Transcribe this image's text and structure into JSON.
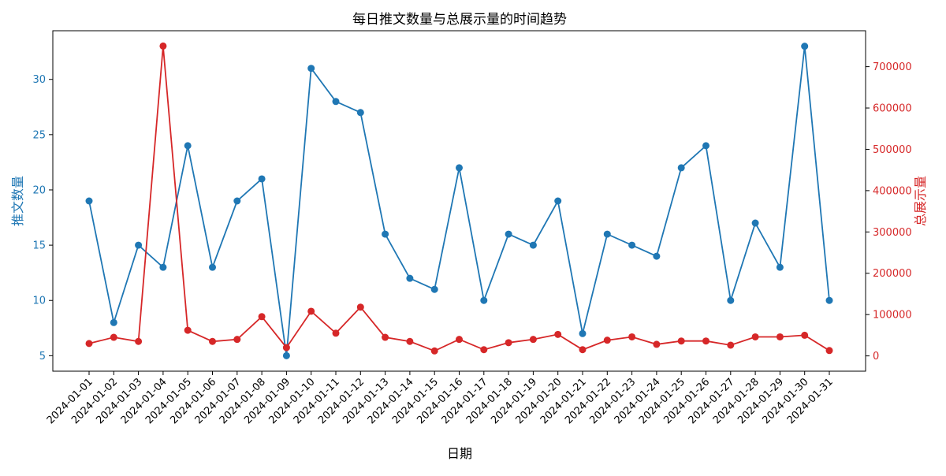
{
  "chart_data": {
    "type": "line",
    "title": "每日推文数量与总展示量的时间趋势",
    "xlabel": "日期",
    "ylabel": "推文数量",
    "ylabel_right": "总展示量",
    "categories": [
      "2024-01-01",
      "2024-01-02",
      "2024-01-03",
      "2024-01-04",
      "2024-01-05",
      "2024-01-06",
      "2024-01-07",
      "2024-01-08",
      "2024-01-09",
      "2024-01-10",
      "2024-01-11",
      "2024-01-12",
      "2024-01-13",
      "2024-01-14",
      "2024-01-15",
      "2024-01-16",
      "2024-01-17",
      "2024-01-18",
      "2024-01-19",
      "2024-01-20",
      "2024-01-21",
      "2024-01-22",
      "2024-01-23",
      "2024-01-24",
      "2024-01-25",
      "2024-01-26",
      "2024-01-27",
      "2024-01-28",
      "2024-01-29",
      "2024-01-30",
      "2024-01-31"
    ],
    "series": [
      {
        "axis": "left",
        "color": "#1f77b4",
        "values": [
          19,
          8,
          15,
          13,
          24,
          13,
          19,
          21,
          5,
          31,
          28,
          27,
          16,
          12,
          11,
          22,
          10,
          16,
          15,
          19,
          7,
          16,
          15,
          14,
          22,
          24,
          10,
          17,
          13,
          33,
          10
        ]
      },
      {
        "axis": "right",
        "color": "#d62728",
        "values": [
          30000,
          45000,
          35000,
          750000,
          62000,
          35000,
          40000,
          95000,
          20000,
          108000,
          55000,
          118000,
          45000,
          35000,
          12000,
          40000,
          15000,
          32000,
          40000,
          52000,
          15000,
          38000,
          46000,
          28000,
          36000,
          36000,
          26000,
          46000,
          46000,
          50000,
          13000
        ]
      }
    ],
    "y_left": {
      "lim": [
        3.6,
        34.4
      ],
      "ticks": [
        5,
        10,
        15,
        20,
        25,
        30
      ],
      "color": "#1f77b4"
    },
    "y_right": {
      "lim": [
        -37000,
        787000
      ],
      "ticks": [
        "0",
        "100000",
        "200000",
        "300000",
        "400000",
        "500000",
        "600000",
        "700000"
      ],
      "color": "#d62728"
    },
    "grid": false,
    "legend": "none"
  }
}
